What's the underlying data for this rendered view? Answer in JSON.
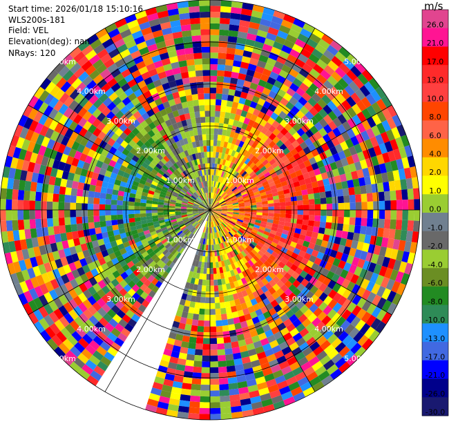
{
  "header": {
    "lines": [
      "Start time: 2026/01/18 15:10:16",
      "WLS200s-181",
      "Field: VEL",
      "Elevation(deg): nan",
      "NRays: 120"
    ]
  },
  "colorbar": {
    "unit": "m/s",
    "ticks": [
      "26.0",
      "21.0",
      "17.0",
      "13.0",
      "10.0",
      "8.0",
      "6.0",
      "4.0",
      "2.0",
      "1.0",
      "0.0",
      "-1.0",
      "-2.0",
      "-4.0",
      "-6.0",
      "-8.0",
      "-10.0",
      "-13.0",
      "-17.0",
      "-21.0",
      "-26.0",
      "-30.0"
    ],
    "colors": [
      "#e1458f",
      "#ff1493",
      "#ff0000",
      "#ff2a2a",
      "#ff4040",
      "#ff4500",
      "#ff6347",
      "#ff8c00",
      "#ffd700",
      "#ffff00",
      "#9acd32",
      "#708090",
      "#696969",
      "#9acd32",
      "#6b8e23",
      "#228b22",
      "#2e8b57",
      "#1e90ff",
      "#4169e1",
      "#0000ff",
      "#00008b",
      "#191970"
    ]
  },
  "chart_data": {
    "type": "heatmap",
    "projection": "polar (PPI)",
    "field": "VEL",
    "n_rays": 120,
    "range_rings_km": [
      1.0,
      2.0,
      3.0,
      4.0,
      5.0
    ],
    "range_ring_labels": [
      "1.00km",
      "2.00km",
      "3.00km",
      "4.00km",
      "5.00km"
    ],
    "max_range_km": 5.0,
    "missing_sector_deg": [
      109,
      121
    ],
    "color_scale": {
      "min": -30.0,
      "max": 26.0
    },
    "dominant_pattern": {
      "near_range_inbound_west_ms": -17,
      "near_range_outbound_east_ms": 13,
      "far_range": "noise (mixed values)"
    }
  }
}
